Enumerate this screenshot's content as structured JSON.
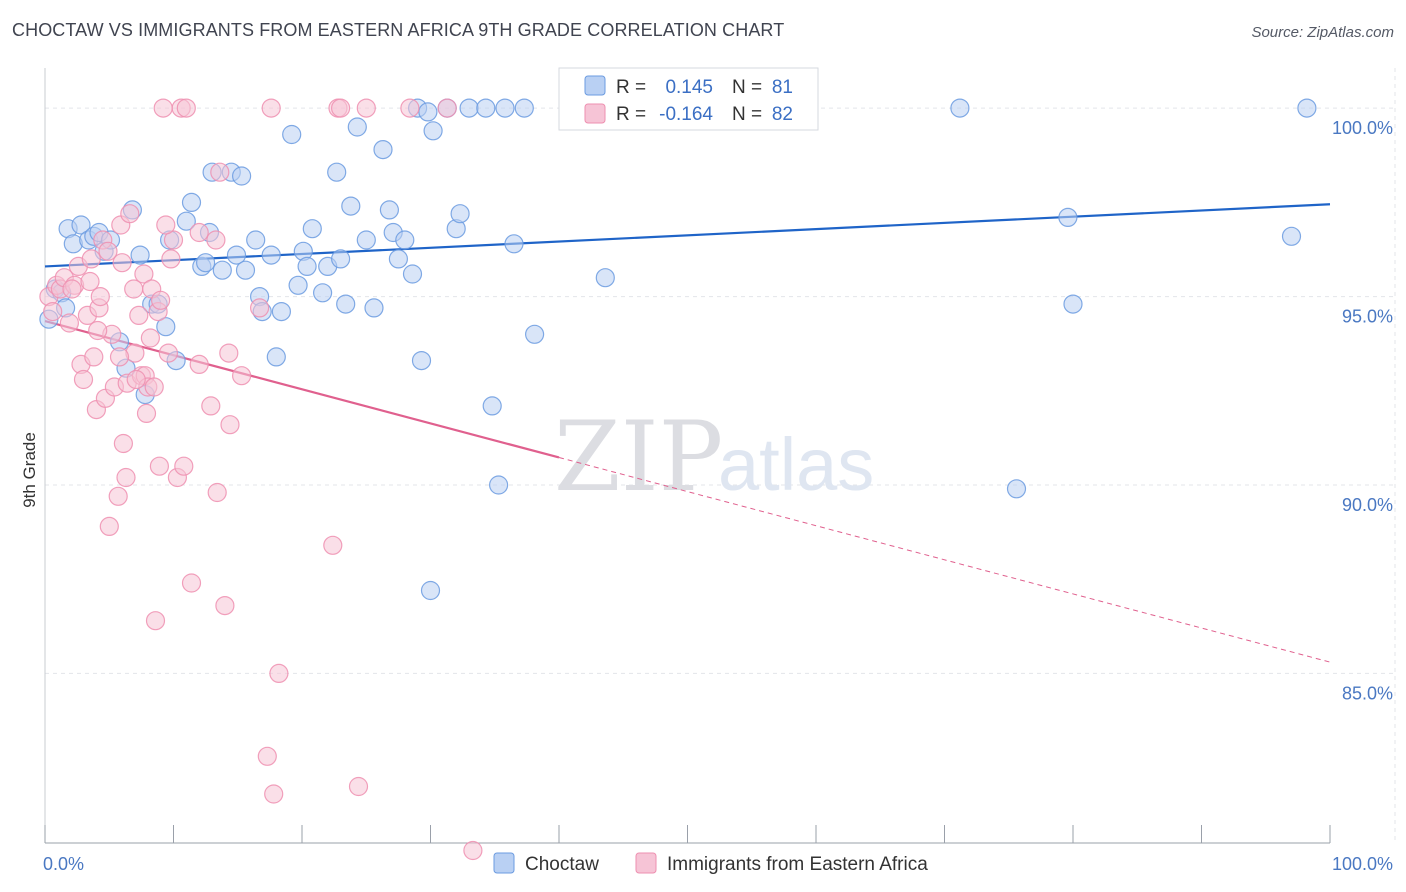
{
  "title": "CHOCTAW VS IMMIGRANTS FROM EASTERN AFRICA 9TH GRADE CORRELATION CHART",
  "source": "Source: ZipAtlas.com",
  "watermark": {
    "zip": "ZIP",
    "atlas": "atlas"
  },
  "colors": {
    "blue": "#6b9be0",
    "blue_fill": "#b9d0f3",
    "blue_line": "#1f64c8",
    "pink": "#ee8fb0",
    "pink_fill": "#f6c4d6",
    "pink_line": "#e0608e",
    "grid": "#e3e5ea",
    "axis": "#9aa0aa"
  },
  "legend_box": {
    "rows": [
      {
        "r_label": "R =",
        "r_value": "0.145",
        "n_label": "N =",
        "n_value": "81"
      },
      {
        "r_label": "R =",
        "r_value": "-0.164",
        "n_label": "N =",
        "n_value": "82"
      }
    ]
  },
  "chart_data": {
    "type": "scatter",
    "xlabel": "",
    "ylabel": "9th Grade",
    "xlim": [
      0,
      100
    ],
    "ylim": [
      80.5,
      100.8
    ],
    "x_tick_labels": [
      "0.0%",
      "100.0%"
    ],
    "y_ticks": [
      85,
      90,
      95,
      100
    ],
    "y_tick_labels": [
      "85.0%",
      "90.0%",
      "95.0%",
      "100.0%"
    ],
    "legend": [
      "Choctaw",
      "Immigrants from Eastern Africa"
    ],
    "series": [
      {
        "name": "Choctaw",
        "r": 0.145,
        "n": 81,
        "trend": {
          "x0": 0,
          "y0": 95.8,
          "x1": 100,
          "y1": 97.45
        },
        "points": [
          [
            0.3,
            94.4
          ],
          [
            0.8,
            95.2
          ],
          [
            1.3,
            95.1
          ],
          [
            1.6,
            94.7
          ],
          [
            1.8,
            96.8
          ],
          [
            2.2,
            96.4
          ],
          [
            2.8,
            96.9
          ],
          [
            3.4,
            96.5
          ],
          [
            3.8,
            96.6
          ],
          [
            4.2,
            96.7
          ],
          [
            4.6,
            96.2
          ],
          [
            5.1,
            96.5
          ],
          [
            5.8,
            93.8
          ],
          [
            6.3,
            93.1
          ],
          [
            6.8,
            97.3
          ],
          [
            7.4,
            96.1
          ],
          [
            7.8,
            92.4
          ],
          [
            8.3,
            94.8
          ],
          [
            8.8,
            94.8
          ],
          [
            9.4,
            94.2
          ],
          [
            9.7,
            96.5
          ],
          [
            10.2,
            93.3
          ],
          [
            11.0,
            97.0
          ],
          [
            11.4,
            97.5
          ],
          [
            12.2,
            95.8
          ],
          [
            12.5,
            95.9
          ],
          [
            12.8,
            96.7
          ],
          [
            13.0,
            98.3
          ],
          [
            13.8,
            95.7
          ],
          [
            14.5,
            98.3
          ],
          [
            14.9,
            96.1
          ],
          [
            15.3,
            98.2
          ],
          [
            15.6,
            95.7
          ],
          [
            16.4,
            96.5
          ],
          [
            16.7,
            95.0
          ],
          [
            16.9,
            94.6
          ],
          [
            17.6,
            96.1
          ],
          [
            18.0,
            93.4
          ],
          [
            18.4,
            94.6
          ],
          [
            19.2,
            99.3
          ],
          [
            19.7,
            95.3
          ],
          [
            20.1,
            96.2
          ],
          [
            20.4,
            95.8
          ],
          [
            20.8,
            96.8
          ],
          [
            21.6,
            95.1
          ],
          [
            22.0,
            95.8
          ],
          [
            22.7,
            98.3
          ],
          [
            23.0,
            96.0
          ],
          [
            23.4,
            94.8
          ],
          [
            23.8,
            97.4
          ],
          [
            24.3,
            99.5
          ],
          [
            25.0,
            96.5
          ],
          [
            25.6,
            94.7
          ],
          [
            26.3,
            98.9
          ],
          [
            26.8,
            97.3
          ],
          [
            27.1,
            96.7
          ],
          [
            27.5,
            96.0
          ],
          [
            28.0,
            96.5
          ],
          [
            28.6,
            95.6
          ],
          [
            29.0,
            100.0
          ],
          [
            29.3,
            93.3
          ],
          [
            30.2,
            99.4
          ],
          [
            31.3,
            100.0
          ],
          [
            32.0,
            96.8
          ],
          [
            32.3,
            97.2
          ],
          [
            33.0,
            100.0
          ],
          [
            34.3,
            100.0
          ],
          [
            34.8,
            92.1
          ],
          [
            35.3,
            90.0
          ],
          [
            35.8,
            100.0
          ],
          [
            36.5,
            96.4
          ],
          [
            37.3,
            100.0
          ],
          [
            38.1,
            94.0
          ],
          [
            43.6,
            95.5
          ],
          [
            45.0,
            100.0
          ],
          [
            71.2,
            100.0
          ],
          [
            75.6,
            89.9
          ],
          [
            79.6,
            97.1
          ],
          [
            80.0,
            94.8
          ],
          [
            97.0,
            96.6
          ],
          [
            98.2,
            100.0
          ],
          [
            30.0,
            87.2
          ],
          [
            29.8,
            99.9
          ]
        ]
      },
      {
        "name": "Immigrants from Eastern Africa",
        "r": -0.164,
        "n": 82,
        "trend": {
          "x0": 0,
          "y0": 94.35,
          "x1": 100,
          "y1": 85.3,
          "solid_until_x": 40
        },
        "points": [
          [
            0.3,
            95.0
          ],
          [
            0.6,
            94.6
          ],
          [
            0.9,
            95.3
          ],
          [
            1.2,
            95.2
          ],
          [
            1.5,
            95.5
          ],
          [
            1.9,
            94.3
          ],
          [
            2.3,
            95.3
          ],
          [
            2.6,
            95.8
          ],
          [
            2.8,
            93.2
          ],
          [
            3.0,
            92.8
          ],
          [
            3.3,
            94.5
          ],
          [
            3.5,
            95.4
          ],
          [
            3.6,
            96.0
          ],
          [
            3.8,
            93.4
          ],
          [
            4.0,
            92.0
          ],
          [
            4.2,
            94.7
          ],
          [
            4.3,
            95.0
          ],
          [
            4.5,
            96.5
          ],
          [
            4.7,
            92.3
          ],
          [
            4.9,
            96.2
          ],
          [
            5.0,
            88.9
          ],
          [
            5.2,
            94.0
          ],
          [
            5.4,
            92.6
          ],
          [
            5.7,
            89.7
          ],
          [
            5.9,
            96.9
          ],
          [
            6.1,
            91.1
          ],
          [
            6.3,
            90.2
          ],
          [
            6.4,
            92.7
          ],
          [
            6.6,
            97.2
          ],
          [
            6.9,
            95.2
          ],
          [
            7.0,
            93.5
          ],
          [
            7.3,
            94.5
          ],
          [
            7.5,
            92.9
          ],
          [
            7.7,
            95.6
          ],
          [
            7.8,
            92.9
          ],
          [
            7.9,
            91.9
          ],
          [
            8.0,
            92.6
          ],
          [
            8.2,
            93.9
          ],
          [
            8.3,
            95.2
          ],
          [
            8.5,
            92.6
          ],
          [
            8.6,
            86.4
          ],
          [
            8.8,
            94.6
          ],
          [
            8.9,
            90.5
          ],
          [
            9.0,
            94.9
          ],
          [
            9.2,
            100.0
          ],
          [
            9.6,
            93.5
          ],
          [
            9.8,
            96.0
          ],
          [
            10.0,
            96.5
          ],
          [
            10.3,
            90.2
          ],
          [
            10.6,
            100.0
          ],
          [
            10.8,
            90.5
          ],
          [
            11.0,
            100.0
          ],
          [
            11.4,
            87.4
          ],
          [
            12.0,
            93.2
          ],
          [
            12.9,
            92.1
          ],
          [
            13.3,
            96.5
          ],
          [
            13.4,
            89.8
          ],
          [
            14.0,
            86.8
          ],
          [
            14.3,
            93.5
          ],
          [
            14.4,
            91.6
          ],
          [
            15.3,
            92.9
          ],
          [
            16.7,
            94.7
          ],
          [
            17.3,
            82.8
          ],
          [
            17.6,
            100.0
          ],
          [
            17.8,
            81.8
          ],
          [
            18.2,
            85.0
          ],
          [
            22.4,
            88.4
          ],
          [
            22.8,
            100.0
          ],
          [
            23.0,
            100.0
          ],
          [
            24.4,
            82.0
          ],
          [
            25.0,
            100.0
          ],
          [
            28.4,
            100.0
          ],
          [
            31.3,
            100.0
          ],
          [
            33.3,
            80.3
          ],
          [
            5.8,
            93.4
          ],
          [
            6.0,
            95.9
          ],
          [
            12.0,
            96.7
          ],
          [
            9.4,
            96.9
          ],
          [
            13.6,
            98.3
          ],
          [
            7.1,
            92.8
          ],
          [
            2.1,
            95.2
          ],
          [
            4.1,
            94.1
          ]
        ]
      }
    ]
  }
}
